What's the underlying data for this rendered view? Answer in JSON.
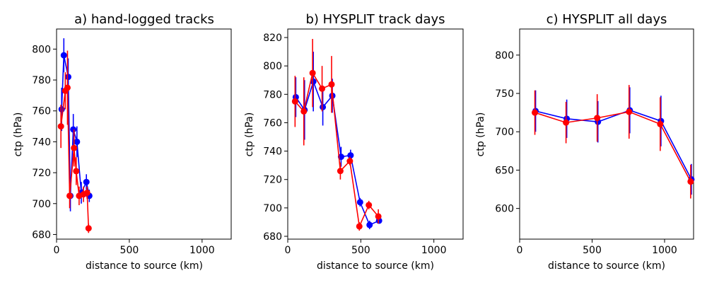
{
  "figure": {
    "background": "#ffffff"
  },
  "chart_data": [
    {
      "type": "line",
      "title": "a) hand-logged tracks",
      "xlabel": "distance to source (km)",
      "ylabel": "ctp (hPa)",
      "xlim": [
        0,
        1200
      ],
      "ylim": [
        677,
        813
      ],
      "xticks": [
        0,
        500,
        1000
      ],
      "yticks": [
        680,
        700,
        720,
        740,
        760,
        780,
        800
      ],
      "series": [
        {
          "name": "blue",
          "color": "#0000ff",
          "x": [
            35,
            50,
            80,
            95,
            115,
            140,
            170,
            205,
            225
          ],
          "y": [
            761,
            796,
            782,
            705,
            748,
            740,
            707,
            714,
            705
          ],
          "err": [
            14,
            11,
            12,
            10,
            10,
            10,
            7,
            5,
            4
          ]
        },
        {
          "name": "red",
          "color": "#ff0000",
          "x": [
            30,
            60,
            75,
            90,
            120,
            135,
            155,
            185,
            210,
            220
          ],
          "y": [
            750,
            773,
            775,
            705,
            736,
            721,
            705,
            706,
            707,
            684
          ],
          "err": [
            14,
            12,
            24,
            8,
            12,
            9,
            6,
            5,
            4,
            3
          ]
        }
      ]
    },
    {
      "type": "line",
      "title": "b) HYSPLIT track days",
      "xlabel": "distance to source (km)",
      "ylabel": "ctp (hPa)",
      "xlim": [
        0,
        1200
      ],
      "ylim": [
        678,
        826
      ],
      "xticks": [
        0,
        500,
        1000
      ],
      "yticks": [
        680,
        700,
        720,
        740,
        760,
        780,
        800,
        820
      ],
      "series": [
        {
          "name": "blue",
          "color": "#0000ff",
          "x": [
            55,
            115,
            175,
            240,
            305,
            365,
            430,
            495,
            560,
            625
          ],
          "y": [
            778,
            769,
            789,
            771,
            779,
            736,
            737,
            704,
            688,
            691
          ],
          "err": [
            14,
            21,
            21,
            13,
            12,
            7,
            4,
            3,
            3,
            2
          ]
        },
        {
          "name": "red",
          "color": "#ff0000",
          "x": [
            50,
            110,
            170,
            235,
            300,
            360,
            425,
            490,
            555,
            620
          ],
          "y": [
            775,
            768,
            795,
            784,
            787,
            726,
            733,
            687,
            702,
            694
          ],
          "err": [
            18,
            24,
            24,
            16,
            20,
            6,
            3,
            3,
            3,
            5
          ]
        }
      ]
    },
    {
      "type": "line",
      "title": "c) HYSPLIT all days",
      "xlabel": "distance to source (km)",
      "ylabel": "ctp (hPa)",
      "xlim": [
        0,
        1200
      ],
      "ylim": [
        560,
        834
      ],
      "xticks": [
        0,
        500,
        1000
      ],
      "yticks": [
        600,
        650,
        700,
        750,
        800
      ],
      "series": [
        {
          "name": "blue",
          "color": "#0000ff",
          "x": [
            110,
            325,
            540,
            760,
            975,
            1185
          ],
          "y": [
            727,
            717,
            713,
            728,
            714,
            638
          ],
          "err": [
            27,
            25,
            27,
            30,
            33,
            20
          ]
        },
        {
          "name": "red",
          "color": "#ff0000",
          "x": [
            105,
            320,
            535,
            755,
            970,
            1180
          ],
          "y": [
            725,
            712,
            718,
            726,
            710,
            635
          ],
          "err": [
            29,
            27,
            31,
            35,
            35,
            22
          ]
        }
      ]
    }
  ]
}
